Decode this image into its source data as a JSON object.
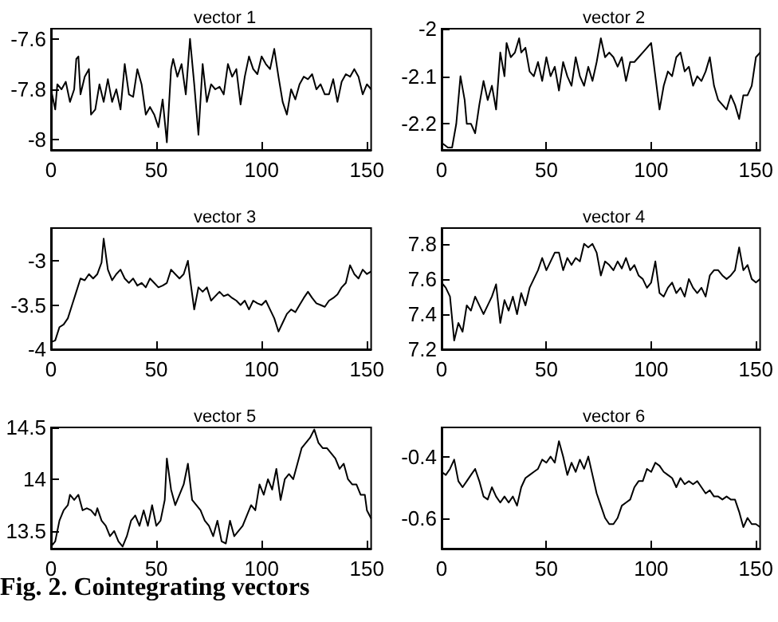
{
  "chart_data": [
    {
      "type": "line",
      "title": "vector 1",
      "color": "#000000",
      "marker": "none",
      "line_style": "solid",
      "xlim": [
        0,
        152
      ],
      "xticks": [
        0,
        50,
        100,
        150
      ],
      "ylim": [
        -8.04,
        -7.56
      ],
      "yticks": [
        -8,
        -7.8,
        -7.6
      ],
      "x": [
        0,
        2,
        3,
        5,
        7,
        9,
        11,
        12,
        13,
        14,
        16,
        18,
        19,
        21,
        23,
        25,
        27,
        29,
        31,
        33,
        35,
        37,
        39,
        41,
        43,
        45,
        47,
        49,
        51,
        53,
        55,
        57,
        58,
        60,
        62,
        64,
        66,
        68,
        70,
        72,
        74,
        76,
        78,
        80,
        82,
        84,
        86,
        88,
        90,
        92,
        94,
        96,
        98,
        100,
        102,
        104,
        106,
        108,
        110,
        112,
        114,
        116,
        118,
        120,
        122,
        124,
        126,
        128,
        130,
        132,
        134,
        136,
        138,
        140,
        142,
        144,
        146,
        148,
        150,
        152
      ],
      "values": [
        -7.8,
        -7.88,
        -7.78,
        -7.8,
        -7.77,
        -7.85,
        -7.8,
        -7.68,
        -7.67,
        -7.82,
        -7.75,
        -7.72,
        -7.9,
        -7.88,
        -7.78,
        -7.85,
        -7.76,
        -7.85,
        -7.8,
        -7.88,
        -7.7,
        -7.82,
        -7.83,
        -7.72,
        -7.78,
        -7.9,
        -7.87,
        -7.9,
        -7.95,
        -7.84,
        -8.01,
        -7.72,
        -7.68,
        -7.75,
        -7.7,
        -7.82,
        -7.6,
        -7.78,
        -7.98,
        -7.7,
        -7.85,
        -7.78,
        -7.8,
        -7.79,
        -7.82,
        -7.7,
        -7.75,
        -7.72,
        -7.86,
        -7.75,
        -7.67,
        -7.72,
        -7.74,
        -7.67,
        -7.7,
        -7.72,
        -7.64,
        -7.75,
        -7.85,
        -7.9,
        -7.8,
        -7.84,
        -7.78,
        -7.75,
        -7.76,
        -7.74,
        -7.8,
        -7.78,
        -7.82,
        -7.82,
        -7.76,
        -7.85,
        -7.77,
        -7.74,
        -7.75,
        -7.72,
        -7.75,
        -7.82,
        -7.78,
        -7.8
      ]
    },
    {
      "type": "line",
      "title": "vector 2",
      "color": "#000000",
      "marker": "none",
      "line_style": "solid",
      "xlim": [
        0,
        152
      ],
      "xticks": [
        0,
        50,
        100,
        150
      ],
      "ylim": [
        -2.255,
        -2
      ],
      "yticks": [
        -2.2,
        -2.1,
        -2
      ],
      "x": [
        0,
        3,
        5,
        7,
        9,
        11,
        12,
        14,
        16,
        18,
        20,
        22,
        24,
        26,
        28,
        30,
        31,
        33,
        35,
        37,
        38,
        40,
        42,
        44,
        46,
        48,
        50,
        52,
        54,
        56,
        58,
        60,
        62,
        64,
        66,
        68,
        70,
        72,
        74,
        76,
        78,
        80,
        82,
        84,
        86,
        88,
        90,
        92,
        94,
        96,
        98,
        100,
        102,
        104,
        106,
        108,
        110,
        112,
        114,
        116,
        118,
        120,
        122,
        124,
        126,
        128,
        130,
        132,
        134,
        136,
        138,
        140,
        142,
        144,
        146,
        148,
        150,
        152
      ],
      "values": [
        -2.24,
        -2.25,
        -2.25,
        -2.2,
        -2.1,
        -2.15,
        -2.2,
        -2.2,
        -2.22,
        -2.16,
        -2.11,
        -2.15,
        -2.12,
        -2.17,
        -2.05,
        -2.1,
        -2.03,
        -2.06,
        -2.05,
        -2.02,
        -2.05,
        -2.04,
        -2.09,
        -2.1,
        -2.07,
        -2.11,
        -2.06,
        -2.1,
        -2.08,
        -2.13,
        -2.07,
        -2.1,
        -2.12,
        -2.06,
        -2.1,
        -2.12,
        -2.08,
        -2.11,
        -2.07,
        -2.02,
        -2.06,
        -2.05,
        -2.06,
        -2.08,
        -2.06,
        -2.11,
        -2.07,
        -2.07,
        -2.06,
        -2.05,
        -2.04,
        -2.03,
        -2.1,
        -2.17,
        -2.12,
        -2.09,
        -2.1,
        -2.06,
        -2.05,
        -2.09,
        -2.08,
        -2.12,
        -2.1,
        -2.11,
        -2.09,
        -2.06,
        -2.12,
        -2.15,
        -2.16,
        -2.17,
        -2.14,
        -2.16,
        -2.19,
        -2.14,
        -2.14,
        -2.12,
        -2.06,
        -2.05
      ]
    },
    {
      "type": "line",
      "title": "vector 3",
      "color": "#000000",
      "marker": "none",
      "line_style": "solid",
      "xlim": [
        0,
        152
      ],
      "xticks": [
        0,
        50,
        100,
        150
      ],
      "ylim": [
        -4,
        -2.63
      ],
      "yticks": [
        -4,
        -3.5,
        -3
      ],
      "x": [
        0,
        2,
        4,
        6,
        8,
        10,
        12,
        14,
        16,
        18,
        20,
        22,
        24,
        25,
        27,
        29,
        31,
        33,
        35,
        37,
        39,
        41,
        43,
        45,
        47,
        49,
        51,
        53,
        55,
        57,
        59,
        61,
        63,
        65,
        66,
        68,
        70,
        72,
        74,
        76,
        78,
        80,
        82,
        84,
        86,
        88,
        90,
        92,
        94,
        96,
        98,
        100,
        102,
        104,
        106,
        108,
        110,
        112,
        114,
        116,
        118,
        120,
        122,
        124,
        126,
        128,
        130,
        132,
        134,
        136,
        138,
        140,
        142,
        144,
        146,
        148,
        150,
        152
      ],
      "values": [
        -3.92,
        -3.9,
        -3.75,
        -3.72,
        -3.65,
        -3.5,
        -3.35,
        -3.2,
        -3.22,
        -3.15,
        -3.2,
        -3.15,
        -3.02,
        -2.75,
        -3.1,
        -3.22,
        -3.15,
        -3.1,
        -3.2,
        -3.25,
        -3.2,
        -3.28,
        -3.25,
        -3.3,
        -3.2,
        -3.25,
        -3.3,
        -3.28,
        -3.25,
        -3.1,
        -3.15,
        -3.2,
        -3.15,
        -3.0,
        -3.2,
        -3.55,
        -3.3,
        -3.35,
        -3.3,
        -3.45,
        -3.4,
        -3.35,
        -3.4,
        -3.38,
        -3.42,
        -3.45,
        -3.5,
        -3.45,
        -3.55,
        -3.45,
        -3.48,
        -3.5,
        -3.45,
        -3.55,
        -3.65,
        -3.8,
        -3.7,
        -3.6,
        -3.55,
        -3.58,
        -3.5,
        -3.42,
        -3.35,
        -3.42,
        -3.48,
        -3.5,
        -3.52,
        -3.45,
        -3.42,
        -3.38,
        -3.3,
        -3.25,
        -3.05,
        -3.15,
        -3.2,
        -3.1,
        -3.15,
        -3.12
      ]
    },
    {
      "type": "line",
      "title": "vector 4",
      "color": "#000000",
      "marker": "none",
      "line_style": "solid",
      "xlim": [
        0,
        152
      ],
      "xticks": [
        0,
        50,
        100,
        150
      ],
      "ylim": [
        7.2,
        7.89
      ],
      "yticks": [
        7.2,
        7.4,
        7.6,
        7.8
      ],
      "x": [
        0,
        2,
        4,
        6,
        8,
        10,
        12,
        14,
        16,
        18,
        20,
        22,
        24,
        26,
        28,
        30,
        32,
        34,
        36,
        38,
        40,
        42,
        44,
        46,
        48,
        50,
        52,
        54,
        56,
        58,
        60,
        62,
        64,
        66,
        68,
        70,
        72,
        74,
        76,
        78,
        80,
        82,
        84,
        86,
        88,
        90,
        92,
        94,
        96,
        98,
        100,
        102,
        104,
        106,
        108,
        110,
        112,
        114,
        116,
        118,
        120,
        122,
        124,
        126,
        128,
        130,
        132,
        134,
        136,
        138,
        140,
        142,
        144,
        146,
        148,
        150,
        152
      ],
      "values": [
        7.58,
        7.55,
        7.5,
        7.25,
        7.35,
        7.3,
        7.45,
        7.42,
        7.5,
        7.45,
        7.4,
        7.45,
        7.5,
        7.57,
        7.35,
        7.48,
        7.42,
        7.5,
        7.4,
        7.52,
        7.45,
        7.55,
        7.6,
        7.65,
        7.72,
        7.65,
        7.7,
        7.75,
        7.75,
        7.65,
        7.72,
        7.68,
        7.72,
        7.7,
        7.8,
        7.78,
        7.8,
        7.75,
        7.62,
        7.7,
        7.68,
        7.65,
        7.7,
        7.66,
        7.72,
        7.65,
        7.68,
        7.62,
        7.6,
        7.55,
        7.58,
        7.7,
        7.52,
        7.5,
        7.55,
        7.58,
        7.52,
        7.55,
        7.5,
        7.6,
        7.55,
        7.52,
        7.55,
        7.5,
        7.62,
        7.65,
        7.65,
        7.62,
        7.6,
        7.62,
        7.65,
        7.78,
        7.65,
        7.68,
        7.6,
        7.58,
        7.6
      ]
    },
    {
      "type": "line",
      "title": "vector 5",
      "color": "#000000",
      "marker": "none",
      "line_style": "solid",
      "xlim": [
        0,
        152
      ],
      "xticks": [
        0,
        50,
        100,
        150
      ],
      "ylim": [
        13.33,
        14.5
      ],
      "yticks": [
        13.5,
        14,
        14.5
      ],
      "annotations": [
        "Fig. 2.  Cointegrating vectors"
      ],
      "x": [
        0,
        2,
        4,
        6,
        8,
        9,
        11,
        13,
        15,
        17,
        19,
        21,
        22,
        24,
        26,
        28,
        30,
        32,
        34,
        36,
        38,
        40,
        42,
        44,
        46,
        48,
        50,
        52,
        54,
        55,
        57,
        59,
        61,
        63,
        65,
        67,
        69,
        71,
        73,
        75,
        77,
        79,
        81,
        83,
        85,
        87,
        89,
        91,
        93,
        95,
        97,
        99,
        101,
        103,
        105,
        107,
        109,
        111,
        113,
        115,
        117,
        119,
        121,
        123,
        125,
        127,
        129,
        131,
        133,
        135,
        137,
        139,
        141,
        143,
        145,
        147,
        149,
        150,
        152
      ],
      "values": [
        13.35,
        13.4,
        13.6,
        13.7,
        13.75,
        13.85,
        13.8,
        13.85,
        13.7,
        13.72,
        13.7,
        13.65,
        13.72,
        13.6,
        13.55,
        13.45,
        13.5,
        13.4,
        13.35,
        13.45,
        13.6,
        13.65,
        13.55,
        13.7,
        13.55,
        13.75,
        13.55,
        13.6,
        13.8,
        14.2,
        13.9,
        13.75,
        13.85,
        13.95,
        14.15,
        13.8,
        13.75,
        13.7,
        13.6,
        13.55,
        13.45,
        13.6,
        13.4,
        13.38,
        13.6,
        13.45,
        13.5,
        13.55,
        13.65,
        13.75,
        13.7,
        13.95,
        13.85,
        14.0,
        13.9,
        14.1,
        13.8,
        14.0,
        14.05,
        14.0,
        14.15,
        14.3,
        14.35,
        14.4,
        14.48,
        14.35,
        14.3,
        14.3,
        14.25,
        14.2,
        14.1,
        14.15,
        14.0,
        13.95,
        13.95,
        13.85,
        13.85,
        13.7,
        13.62
      ]
    },
    {
      "type": "line",
      "title": "vector 6",
      "color": "#000000",
      "marker": "none",
      "line_style": "solid",
      "xlim": [
        0,
        152
      ],
      "xticks": [
        0,
        50,
        100,
        150
      ],
      "ylim": [
        -0.7,
        -0.305
      ],
      "yticks": [
        -0.6,
        -0.4
      ],
      "x": [
        0,
        2,
        4,
        6,
        8,
        10,
        12,
        14,
        16,
        18,
        20,
        22,
        24,
        26,
        28,
        30,
        32,
        34,
        36,
        38,
        40,
        42,
        44,
        46,
        48,
        50,
        52,
        54,
        56,
        58,
        60,
        62,
        64,
        66,
        68,
        70,
        72,
        74,
        76,
        78,
        80,
        82,
        84,
        86,
        88,
        90,
        92,
        94,
        96,
        98,
        100,
        102,
        104,
        106,
        108,
        110,
        112,
        114,
        116,
        118,
        120,
        122,
        124,
        126,
        128,
        130,
        132,
        134,
        136,
        138,
        140,
        142,
        144,
        146,
        148,
        150,
        152
      ],
      "values": [
        -0.45,
        -0.46,
        -0.44,
        -0.41,
        -0.48,
        -0.5,
        -0.48,
        -0.46,
        -0.44,
        -0.48,
        -0.53,
        -0.54,
        -0.5,
        -0.53,
        -0.55,
        -0.53,
        -0.55,
        -0.53,
        -0.56,
        -0.5,
        -0.47,
        -0.46,
        -0.45,
        -0.44,
        -0.41,
        -0.42,
        -0.4,
        -0.42,
        -0.35,
        -0.4,
        -0.46,
        -0.42,
        -0.45,
        -0.41,
        -0.44,
        -0.4,
        -0.46,
        -0.52,
        -0.56,
        -0.6,
        -0.62,
        -0.62,
        -0.6,
        -0.56,
        -0.55,
        -0.54,
        -0.5,
        -0.48,
        -0.48,
        -0.44,
        -0.45,
        -0.42,
        -0.43,
        -0.45,
        -0.46,
        -0.47,
        -0.5,
        -0.47,
        -0.49,
        -0.48,
        -0.49,
        -0.48,
        -0.5,
        -0.52,
        -0.51,
        -0.53,
        -0.53,
        -0.54,
        -0.53,
        -0.54,
        -0.54,
        -0.58,
        -0.63,
        -0.6,
        -0.62,
        -0.62,
        -0.63
      ]
    }
  ]
}
